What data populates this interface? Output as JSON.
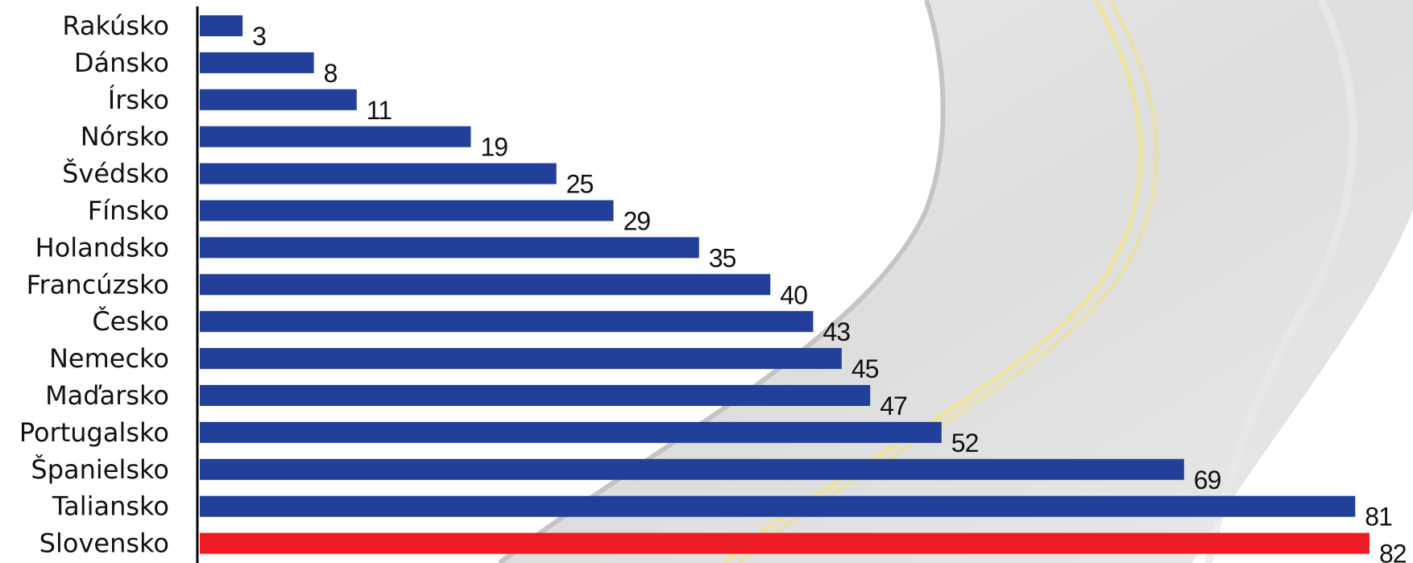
{
  "chart_data": {
    "type": "bar",
    "orientation": "horizontal",
    "categories": [
      "Rakúsko",
      "Dánsko",
      "Írsko",
      "Nórsko",
      "Švédsko",
      "Fínsko",
      "Holandsko",
      "Francúzsko",
      "Česko",
      "Nemecko",
      "Maďarsko",
      "Portugalsko",
      "Španielsko",
      "Taliansko",
      "Slovensko"
    ],
    "values": [
      3,
      8,
      11,
      19,
      25,
      29,
      35,
      40,
      43,
      45,
      47,
      52,
      69,
      81,
      82
    ],
    "value_labels": [
      "3",
      "8",
      "11",
      "19",
      "25",
      "29",
      "35",
      "40",
      "43",
      "45",
      "47",
      "52",
      "69",
      "81",
      "82"
    ],
    "highlight": "Slovensko",
    "xlim": [
      0,
      82
    ],
    "grid": false,
    "legend": "none",
    "colors": {
      "bar": "#22409A",
      "highlight_bar": "#ED1C24",
      "axis": "#000000",
      "road": "#CFCFCF",
      "road_line": "#F2E27A"
    }
  }
}
